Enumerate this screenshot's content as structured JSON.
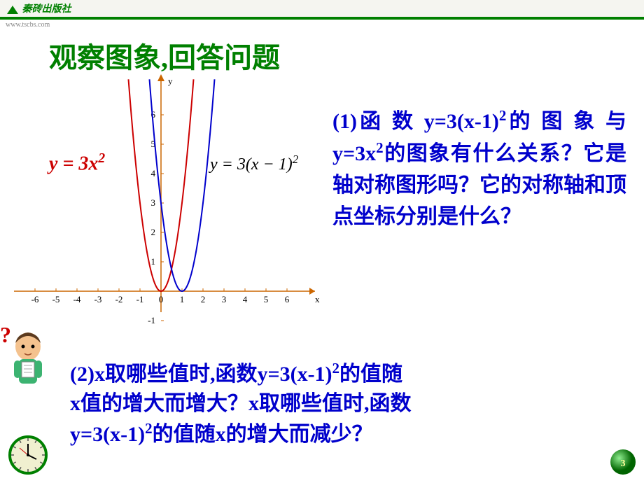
{
  "theme": {
    "green": "#008000",
    "blue": "#0000cc",
    "red": "#cc0000",
    "orange": "#cc6600"
  },
  "logo": {
    "text": "秦砖出版社",
    "color": "#008000"
  },
  "url": "www.tscbs.com",
  "title": {
    "text": "观察图象,回答问题",
    "color": "#008000"
  },
  "graph": {
    "x_ticks": [
      "-6",
      "-5",
      "-4",
      "-3",
      "-2",
      "-1",
      "0",
      "1",
      "2",
      "3",
      "4",
      "5",
      "6"
    ],
    "y_ticks": [
      "-1",
      "1",
      "2",
      "3",
      "4",
      "5",
      "6"
    ],
    "x_label": "x",
    "y_label": "y",
    "axis_color": "#cc6600",
    "curve1": {
      "color": "#cc0000",
      "a": 3,
      "h": 0,
      "label": "y = 3x²"
    },
    "curve2": {
      "color": "#0000cc",
      "a": 3,
      "h": 1,
      "label": "y = 3(x − 1)²"
    }
  },
  "eq1_color": "#cc0000",
  "eq2_color": "#000000",
  "q1": {
    "color": "#0000cc",
    "prefix": "(1)函 数  y=3(x-1)",
    "mid1": "的 图 象 与 y=3x",
    "mid2": "的图象有什么关系？它是轴对称图形吗？它的对称轴和顶点坐标分别是什么？"
  },
  "q2": {
    "color": "#0000cc",
    "l1a": "(2)x取哪些值时,函数y=3(x-1)",
    "l1b": "的值随",
    "l2": "x值的增大而增大？x取哪些值时,函数",
    "l3a": "y=3(x-1)",
    "l3b": "的值随x的增大而减少？"
  },
  "page_number": "3",
  "clock": {
    "face": "#f0f0d0",
    "rim": "#008000"
  }
}
